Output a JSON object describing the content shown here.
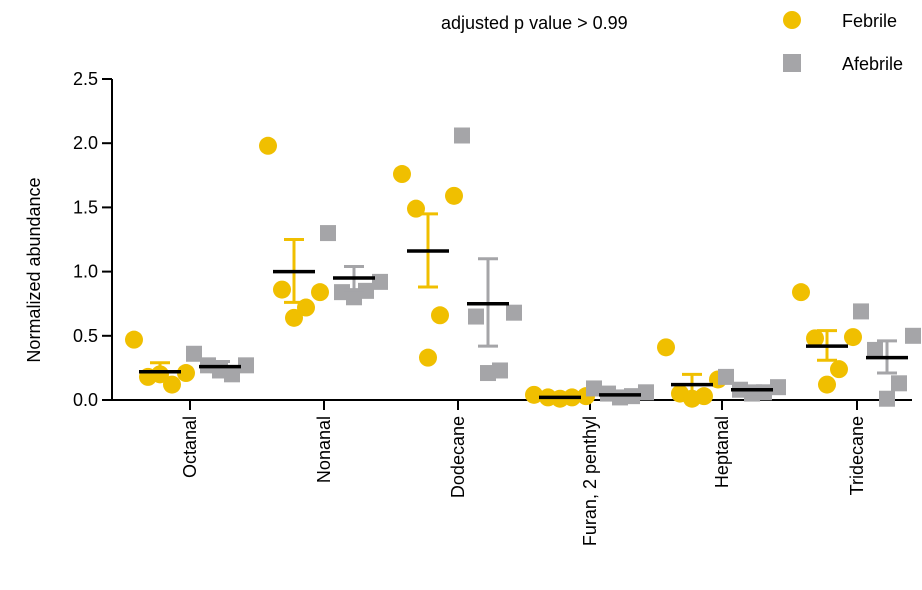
{
  "chart_data": {
    "type": "scatter",
    "subtype": "dot-plot with mean ± SEM",
    "annotation": "adjusted p value > 0.99",
    "xlabel": "",
    "ylabel": "Normalized abundance",
    "ylim": [
      0,
      2.5
    ],
    "yticks": [
      "0.0",
      "0.5",
      "1.0",
      "1.5",
      "2.0",
      "2.5"
    ],
    "categories": [
      "Octanal",
      "Nonanal",
      "Dodecane",
      "Furan, 2 penthyl",
      "Heptanal",
      "Tridecane"
    ],
    "legend_position": "top-right",
    "series": [
      {
        "name": "Febrile",
        "marker": "circle",
        "color": "#f0bf00",
        "mean": [
          0.22,
          1.0,
          1.16,
          0.02,
          0.12,
          0.42
        ],
        "sem_upper": [
          0.29,
          1.25,
          1.45,
          0.03,
          0.2,
          0.54
        ],
        "sem_lower": [
          0.16,
          0.76,
          0.88,
          0.01,
          0.05,
          0.31
        ],
        "points": [
          [
            0.47,
            0.21,
            0.18,
            0.12,
            0.2
          ],
          [
            1.98,
            0.84,
            0.86,
            0.72,
            0.64
          ],
          [
            1.76,
            1.59,
            1.49,
            0.66,
            0.33
          ],
          [
            0.04,
            0.03,
            0.02,
            0.02,
            0.01
          ],
          [
            0.41,
            0.16,
            0.05,
            0.03,
            0.01
          ],
          [
            0.84,
            0.49,
            0.48,
            0.24,
            0.12
          ]
        ]
      },
      {
        "name": "Afebrile",
        "marker": "square",
        "color": "#a5a5a8",
        "mean": [
          0.26,
          0.95,
          0.75,
          0.04,
          0.08,
          0.33
        ],
        "sem_upper": [
          0.3,
          1.04,
          1.1,
          0.06,
          0.11,
          0.46
        ],
        "sem_lower": [
          0.22,
          0.86,
          0.42,
          0.02,
          0.05,
          0.21
        ],
        "points": [
          [
            0.36,
            0.27,
            0.27,
            0.2,
            0.23
          ],
          [
            1.3,
            0.92,
            0.84,
            0.85,
            0.8
          ],
          [
            2.06,
            0.68,
            0.65,
            0.23,
            0.21
          ],
          [
            0.09,
            0.06,
            0.05,
            0.03,
            0.02
          ],
          [
            0.18,
            0.1,
            0.08,
            0.06,
            0.05
          ],
          [
            0.69,
            0.5,
            0.39,
            0.13,
            0.01
          ]
        ]
      }
    ]
  }
}
